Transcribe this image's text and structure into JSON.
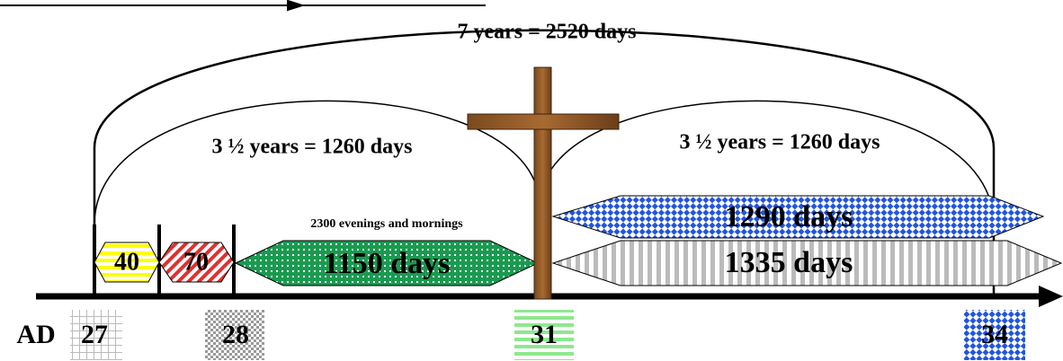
{
  "header": {
    "title": "7 years = 2520 days"
  },
  "arcs": [
    {
      "label": "3 ½ years = 1260 days"
    },
    {
      "label": "3 ½ years = 1260 days"
    }
  ],
  "periods": [
    {
      "label": "40"
    },
    {
      "label": "70"
    },
    {
      "label": "1150 days",
      "note": "2300 evenings and mornings"
    },
    {
      "label": "1290 days"
    },
    {
      "label": "1335 days"
    }
  ],
  "axis": {
    "era": "AD",
    "years": [
      "27",
      "28",
      "31",
      "34"
    ]
  }
}
